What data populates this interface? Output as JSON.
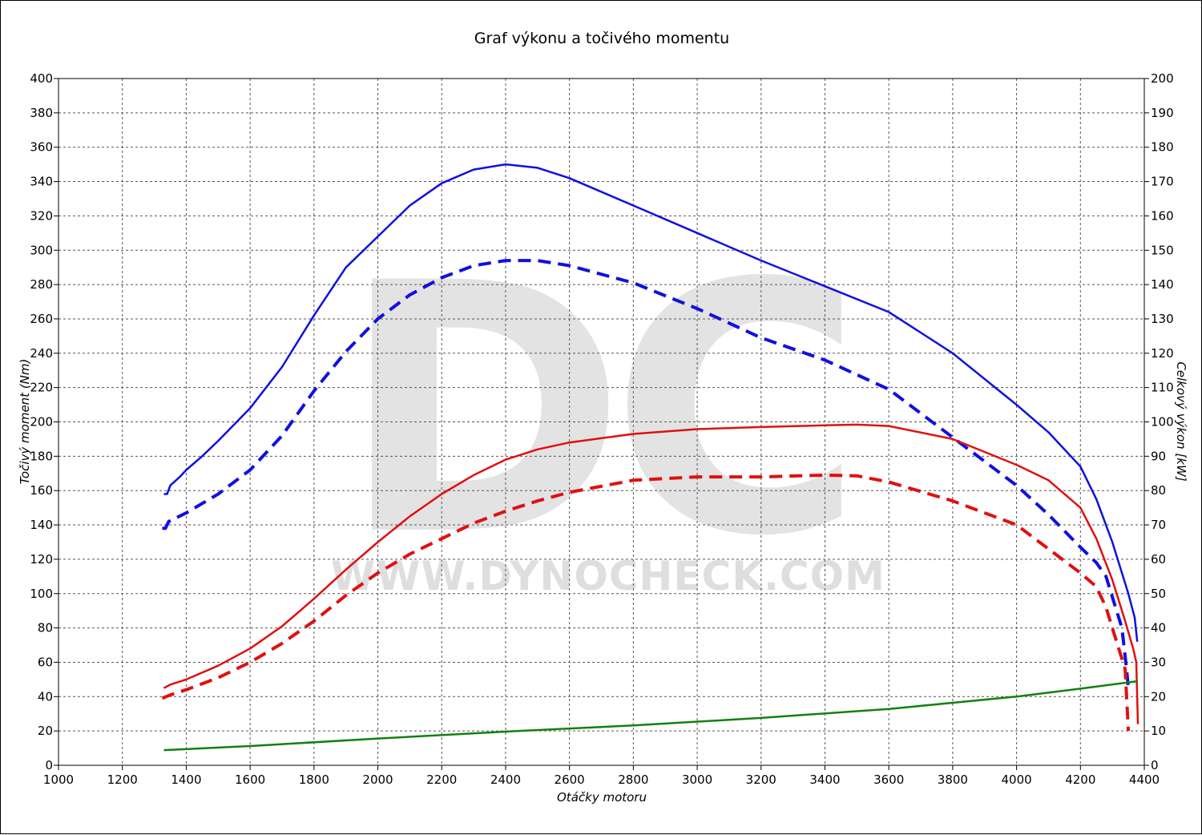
{
  "chart_data": {
    "type": "line",
    "title": "Graf výkonu a točivého momentu",
    "watermark": {
      "logo": "DC",
      "text": "WWW.DYNOCHECK.COM"
    },
    "xlabel": "Otáčky motoru",
    "ylabel_left": "Točivý moment (Nm)",
    "ylabel_right": "Celkový výkon [kW]",
    "xlim": [
      1000,
      4400
    ],
    "ylim_left": [
      0,
      400
    ],
    "ylim_right": [
      0,
      200
    ],
    "x_ticks": [
      1000,
      1200,
      1400,
      1600,
      1800,
      2000,
      2200,
      2400,
      2600,
      2800,
      3000,
      3200,
      3400,
      3600,
      3800,
      4000,
      4200,
      4400
    ],
    "y_ticks_left": [
      0,
      20,
      40,
      60,
      80,
      100,
      120,
      140,
      160,
      180,
      200,
      220,
      240,
      260,
      280,
      300,
      320,
      340,
      360,
      380,
      400
    ],
    "y_ticks_right": [
      0,
      10,
      20,
      30,
      40,
      50,
      60,
      70,
      80,
      90,
      100,
      110,
      120,
      130,
      140,
      150,
      160,
      170,
      180,
      190,
      200
    ],
    "grid": true,
    "series": [
      {
        "axis": "left",
        "color": "#1010e0",
        "dash": false,
        "points": [
          [
            1330,
            158
          ],
          [
            1340,
            158
          ],
          [
            1350,
            163
          ],
          [
            1380,
            168
          ],
          [
            1400,
            172
          ],
          [
            1450,
            180
          ],
          [
            1500,
            189
          ],
          [
            1600,
            208
          ],
          [
            1700,
            232
          ],
          [
            1800,
            262
          ],
          [
            1900,
            290
          ],
          [
            2000,
            308
          ],
          [
            2100,
            326
          ],
          [
            2200,
            339
          ],
          [
            2300,
            347
          ],
          [
            2400,
            350
          ],
          [
            2500,
            348
          ],
          [
            2600,
            342
          ],
          [
            2800,
            326
          ],
          [
            3000,
            310
          ],
          [
            3200,
            294
          ],
          [
            3400,
            279
          ],
          [
            3600,
            264
          ],
          [
            3800,
            240
          ],
          [
            4000,
            210
          ],
          [
            4100,
            194
          ],
          [
            4200,
            174
          ],
          [
            4250,
            155
          ],
          [
            4300,
            130
          ],
          [
            4350,
            100
          ],
          [
            4370,
            86
          ],
          [
            4378,
            72
          ]
        ]
      },
      {
        "axis": "left",
        "color": "#1010e0",
        "dash": true,
        "points": [
          [
            1325,
            138
          ],
          [
            1335,
            138
          ],
          [
            1345,
            142
          ],
          [
            1400,
            147
          ],
          [
            1500,
            158
          ],
          [
            1600,
            172
          ],
          [
            1700,
            192
          ],
          [
            1800,
            218
          ],
          [
            1900,
            241
          ],
          [
            2000,
            260
          ],
          [
            2100,
            274
          ],
          [
            2200,
            284
          ],
          [
            2300,
            291
          ],
          [
            2400,
            294
          ],
          [
            2500,
            294
          ],
          [
            2600,
            291
          ],
          [
            2800,
            281
          ],
          [
            3000,
            266
          ],
          [
            3200,
            249
          ],
          [
            3400,
            236
          ],
          [
            3600,
            219
          ],
          [
            3800,
            191
          ],
          [
            4000,
            163
          ],
          [
            4100,
            146
          ],
          [
            4200,
            127
          ],
          [
            4250,
            118
          ],
          [
            4280,
            110
          ],
          [
            4300,
            98
          ],
          [
            4330,
            80
          ],
          [
            4345,
            55
          ],
          [
            4350,
            45
          ]
        ]
      },
      {
        "axis": "right",
        "color": "#e01010",
        "dash": false,
        "points": [
          [
            1330,
            22.5
          ],
          [
            1350,
            23.5
          ],
          [
            1400,
            25
          ],
          [
            1500,
            29
          ],
          [
            1600,
            34
          ],
          [
            1700,
            40.5
          ],
          [
            1800,
            48.5
          ],
          [
            1900,
            57
          ],
          [
            2000,
            65
          ],
          [
            2100,
            72.5
          ],
          [
            2200,
            79
          ],
          [
            2300,
            84.5
          ],
          [
            2400,
            89
          ],
          [
            2500,
            92
          ],
          [
            2600,
            94
          ],
          [
            2800,
            96.5
          ],
          [
            3000,
            97.9
          ],
          [
            3200,
            98.5
          ],
          [
            3400,
            99
          ],
          [
            3500,
            99.2
          ],
          [
            3600,
            98.8
          ],
          [
            3800,
            95
          ],
          [
            4000,
            87.5
          ],
          [
            4100,
            83
          ],
          [
            4200,
            75
          ],
          [
            4250,
            66
          ],
          [
            4300,
            54
          ],
          [
            4340,
            42
          ],
          [
            4365,
            34
          ],
          [
            4375,
            30
          ],
          [
            4380,
            12
          ]
        ]
      },
      {
        "axis": "right",
        "color": "#e01010",
        "dash": true,
        "points": [
          [
            1325,
            19.5
          ],
          [
            1350,
            20.5
          ],
          [
            1400,
            22
          ],
          [
            1500,
            25.5
          ],
          [
            1600,
            30
          ],
          [
            1700,
            35.5
          ],
          [
            1800,
            42
          ],
          [
            1900,
            49.5
          ],
          [
            2000,
            56
          ],
          [
            2100,
            61.5
          ],
          [
            2200,
            66
          ],
          [
            2300,
            70.5
          ],
          [
            2400,
            74
          ],
          [
            2500,
            77
          ],
          [
            2600,
            79.5
          ],
          [
            2800,
            83
          ],
          [
            3000,
            84
          ],
          [
            3200,
            84
          ],
          [
            3400,
            84.5
          ],
          [
            3500,
            84.3
          ],
          [
            3600,
            82.5
          ],
          [
            3800,
            77
          ],
          [
            4000,
            70
          ],
          [
            4100,
            63
          ],
          [
            4200,
            56
          ],
          [
            4250,
            52
          ],
          [
            4280,
            46
          ],
          [
            4300,
            40
          ],
          [
            4320,
            34
          ],
          [
            4340,
            28
          ],
          [
            4350,
            10
          ]
        ]
      },
      {
        "axis": "right",
        "color": "#128012",
        "dash": false,
        "points": [
          [
            1330,
            4.4
          ],
          [
            1600,
            5.6
          ],
          [
            2000,
            7.8
          ],
          [
            2400,
            9.8
          ],
          [
            2800,
            11.6
          ],
          [
            3200,
            13.8
          ],
          [
            3600,
            16.4
          ],
          [
            3800,
            18.2
          ],
          [
            4000,
            20
          ],
          [
            4200,
            22.3
          ],
          [
            4380,
            24.5
          ]
        ]
      }
    ]
  }
}
